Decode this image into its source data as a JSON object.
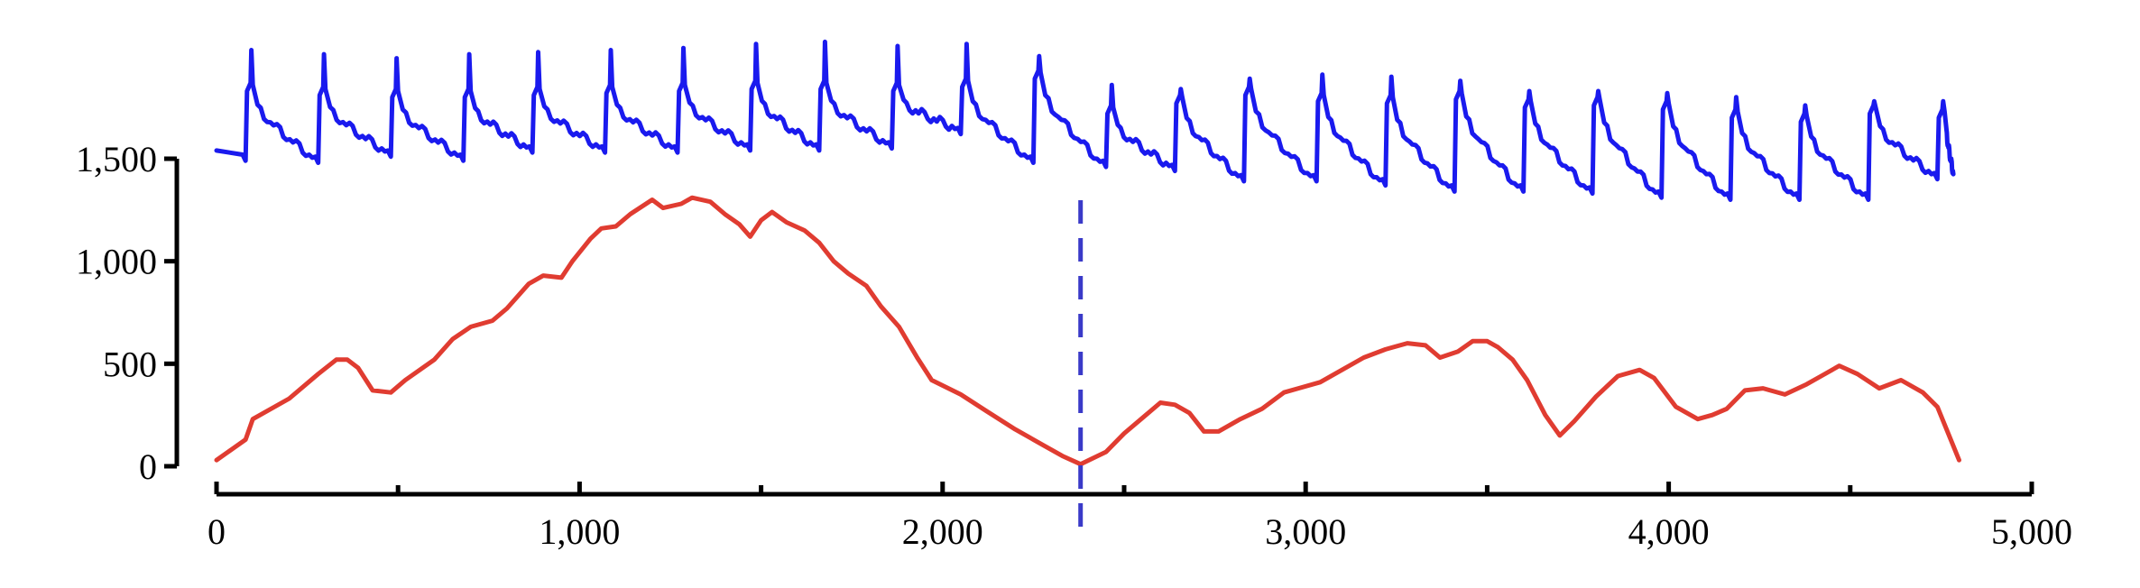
{
  "chart_data": {
    "type": "line",
    "title": "",
    "xlabel": "",
    "ylabel": "",
    "xlim": [
      0,
      5000
    ],
    "ylim": [
      0,
      1500
    ],
    "x_ticks": [
      0,
      1000,
      2000,
      3000,
      4000,
      5000
    ],
    "x_tick_labels": [
      "0",
      "1,000",
      "2,000",
      "3,000",
      "4,000",
      "5,000"
    ],
    "x_minor_ticks": [
      500,
      1500,
      2500,
      3500,
      4500
    ],
    "y_ticks": [
      0,
      500,
      1000,
      1500
    ],
    "y_tick_labels": [
      "0",
      "500",
      "1,000",
      "1,500"
    ],
    "grid": false,
    "legend": "none",
    "colors": {
      "upper": "#1a1aee",
      "lower": "#e03c31",
      "marker": "#3a3ac8",
      "axis": "#000000"
    },
    "marker": {
      "type": "vertical-dashed-line",
      "x": 2380
    },
    "series": [
      {
        "color": "#1a1aee",
        "description": "periodic sawtooth signal drawn above the axis range",
        "start": 1540,
        "start_x": 0,
        "end_x": 4800,
        "peaks": [
          {
            "x": 80,
            "rise": 1830,
            "peak": 2030,
            "trough": 1490
          },
          {
            "x": 280,
            "rise": 1810,
            "peak": 2010,
            "trough": 1480
          },
          {
            "x": 480,
            "rise": 1800,
            "peak": 1990,
            "trough": 1510
          },
          {
            "x": 680,
            "rise": 1800,
            "peak": 2010,
            "trough": 1490
          },
          {
            "x": 870,
            "rise": 1810,
            "peak": 2020,
            "trough": 1530
          },
          {
            "x": 1070,
            "rise": 1820,
            "peak": 2030,
            "trough": 1530
          },
          {
            "x": 1270,
            "rise": 1830,
            "peak": 2040,
            "trough": 1530
          },
          {
            "x": 1470,
            "rise": 1840,
            "peak": 2060,
            "trough": 1540
          },
          {
            "x": 1660,
            "rise": 1840,
            "peak": 2070,
            "trough": 1540
          },
          {
            "x": 1860,
            "rise": 1830,
            "peak": 2050,
            "trough": 1550
          },
          {
            "x": 2050,
            "rise": 1850,
            "peak": 2060,
            "trough": 1620
          },
          {
            "x": 2250,
            "rise": 1890,
            "peak": 2000,
            "trough": 1480
          },
          {
            "x": 2450,
            "rise": 1720,
            "peak": 1860,
            "trough": 1460
          },
          {
            "x": 2640,
            "rise": 1770,
            "peak": 1840,
            "trough": 1440
          },
          {
            "x": 2830,
            "rise": 1810,
            "peak": 1890,
            "trough": 1390
          },
          {
            "x": 3030,
            "rise": 1780,
            "peak": 1910,
            "trough": 1390
          },
          {
            "x": 3220,
            "rise": 1770,
            "peak": 1900,
            "trough": 1370
          },
          {
            "x": 3410,
            "rise": 1790,
            "peak": 1880,
            "trough": 1340
          },
          {
            "x": 3600,
            "rise": 1750,
            "peak": 1830,
            "trough": 1340
          },
          {
            "x": 3790,
            "rise": 1760,
            "peak": 1830,
            "trough": 1330
          },
          {
            "x": 3980,
            "rise": 1740,
            "peak": 1820,
            "trough": 1310
          },
          {
            "x": 4170,
            "rise": 1700,
            "peak": 1800,
            "trough": 1300
          },
          {
            "x": 4360,
            "rise": 1680,
            "peak": 1760,
            "trough": 1300
          },
          {
            "x": 4550,
            "rise": 1720,
            "peak": 1780,
            "trough": 1300
          },
          {
            "x": 4740,
            "rise": 1700,
            "peak": 1780,
            "trough": 1400
          }
        ]
      },
      {
        "color": "#e03c31",
        "x": [
          0,
          80,
          100,
          200,
          280,
          330,
          360,
          390,
          430,
          480,
          520,
          600,
          650,
          700,
          760,
          800,
          860,
          900,
          950,
          980,
          1030,
          1060,
          1100,
          1140,
          1200,
          1230,
          1280,
          1310,
          1360,
          1400,
          1440,
          1470,
          1500,
          1530,
          1570,
          1620,
          1660,
          1700,
          1740,
          1790,
          1830,
          1880,
          1930,
          1970,
          2050,
          2120,
          2200,
          2280,
          2330,
          2380,
          2450,
          2500,
          2560,
          2600,
          2640,
          2680,
          2720,
          2760,
          2820,
          2880,
          2940,
          2980,
          3040,
          3100,
          3160,
          3220,
          3280,
          3330,
          3370,
          3420,
          3460,
          3500,
          3530,
          3570,
          3610,
          3660,
          3700,
          3740,
          3800,
          3860,
          3920,
          3960,
          4020,
          4080,
          4120,
          4160,
          4210,
          4260,
          4320,
          4380,
          4420,
          4470,
          4520,
          4580,
          4640,
          4700,
          4740,
          4800
        ],
        "y": [
          30,
          130,
          230,
          330,
          450,
          520,
          520,
          480,
          370,
          360,
          420,
          520,
          620,
          680,
          710,
          770,
          890,
          930,
          920,
          1000,
          1110,
          1160,
          1170,
          1230,
          1300,
          1260,
          1280,
          1310,
          1290,
          1230,
          1180,
          1120,
          1200,
          1240,
          1190,
          1150,
          1090,
          1000,
          940,
          880,
          780,
          680,
          530,
          420,
          350,
          270,
          180,
          100,
          50,
          10,
          70,
          160,
          250,
          310,
          300,
          260,
          170,
          170,
          230,
          280,
          360,
          380,
          410,
          470,
          530,
          570,
          600,
          590,
          530,
          560,
          610,
          610,
          580,
          520,
          420,
          250,
          150,
          220,
          340,
          440,
          470,
          430,
          290,
          230,
          250,
          280,
          370,
          380,
          350,
          400,
          440,
          490,
          450,
          380,
          420,
          360,
          290,
          30
        ]
      }
    ]
  }
}
